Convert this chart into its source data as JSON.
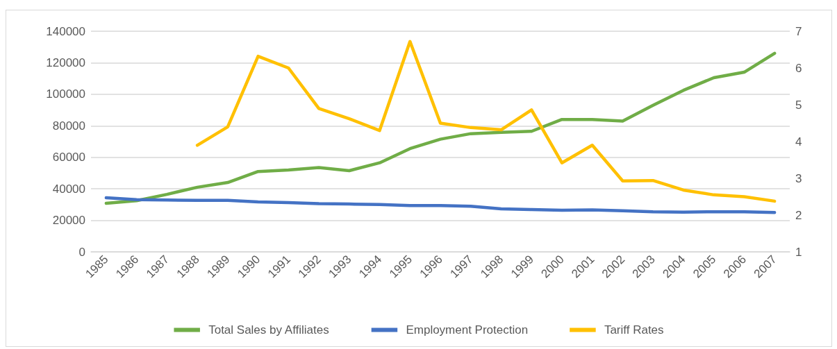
{
  "chart_data": {
    "type": "line",
    "categories": [
      "1985",
      "1986",
      "1987",
      "1988",
      "1989",
      "1990",
      "1991",
      "1992",
      "1993",
      "1994",
      "1995",
      "1996",
      "1997",
      "1998",
      "1999",
      "2000",
      "2001",
      "2002",
      "2003",
      "2004",
      "2005",
      "2006",
      "2007"
    ],
    "series": [
      {
        "name": "Total Sales by Affiliates",
        "color": "#70ad47",
        "values": [
          30800,
          32500,
          36500,
          41000,
          44000,
          51000,
          52000,
          53500,
          51500,
          56500,
          65500,
          71500,
          75000,
          75800,
          76500,
          84000,
          84000,
          83000,
          93000,
          102500,
          110500,
          114000,
          126000
        ]
      },
      {
        "name": "Employment Protection",
        "color": "#4472c4",
        "axis": "y2",
        "values": [
          2.47,
          2.42,
          2.41,
          2.4,
          2.4,
          2.36,
          2.34,
          2.31,
          2.3,
          2.29,
          2.26,
          2.26,
          2.24,
          2.17,
          2.15,
          2.13,
          2.14,
          2.12,
          2.09,
          2.08,
          2.09,
          2.09,
          2.07
        ]
      },
      {
        "name": "Tariff Rates",
        "color": "#ffc000",
        "axis": "y2",
        "values": [
          null,
          null,
          null,
          3.9,
          4.4,
          6.32,
          6.0,
          4.9,
          4.62,
          4.3,
          6.72,
          4.5,
          4.38,
          4.32,
          4.86,
          3.42,
          3.9,
          2.93,
          2.94,
          2.68,
          2.55,
          2.5,
          2.38
        ]
      }
    ],
    "ylim": [
      0,
      140000
    ],
    "yticks": [
      0,
      20000,
      40000,
      60000,
      80000,
      100000,
      120000,
      140000
    ],
    "y2lim": [
      1,
      7
    ],
    "y2ticks": [
      1,
      2,
      3,
      4,
      5,
      6,
      7
    ],
    "grid": "y",
    "legend": "bottom",
    "marker": "none",
    "line_style": "solid"
  }
}
